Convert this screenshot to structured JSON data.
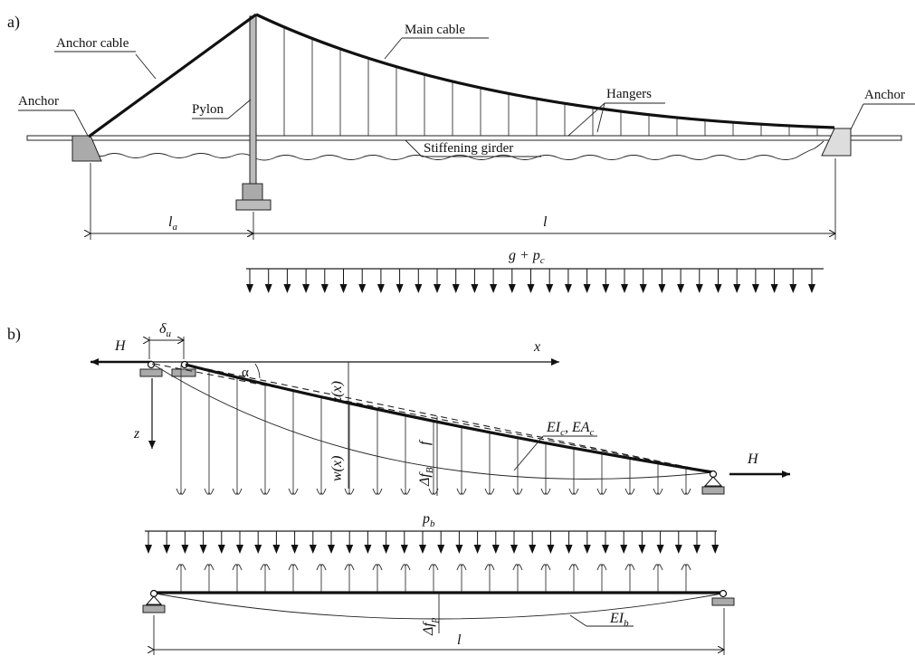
{
  "panel_a": {
    "tag": "a)",
    "labels": {
      "anchor_left": "Anchor",
      "anchor_right": "Anchor",
      "anchor_cable": "Anchor cable",
      "main_cable": "Main cable",
      "pylon": "Pylon",
      "hangers": "Hangers",
      "stiffening_girder": "Stiffening girder"
    },
    "dim_la": "l",
    "dim_la_sub": "a",
    "dim_l": "l",
    "load_label": "g + p",
    "load_label_sub": "c"
  },
  "panel_b": {
    "tag": "b)",
    "H_left": "H",
    "H_right": "H",
    "delta_u": "δ",
    "delta_u_sub": "u",
    "x_axis": "x",
    "z_axis": "z",
    "alpha": "α",
    "zx": "z(x)",
    "wx": "w(x)",
    "f": "f",
    "delta_f": "Δf",
    "delta_f_sub": "B",
    "cable_props": "EI",
    "cable_props_sub1": "c",
    "cable_props_mid": ", EA",
    "cable_props_sub2": "c",
    "pb": "p",
    "pb_sub": "b",
    "delta_fp": "Δf",
    "delta_fp_sub": "p",
    "EIb": "EI",
    "EIb_sub": "b",
    "dim_l": "l"
  }
}
